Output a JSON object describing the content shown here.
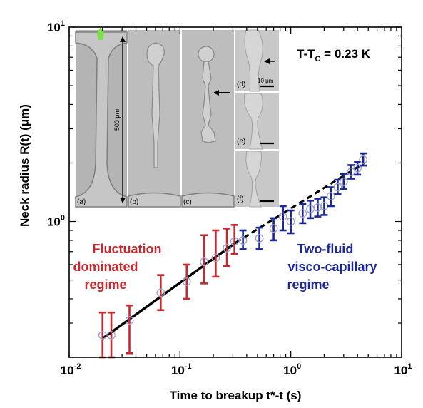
{
  "chart_data": {
    "type": "scatter",
    "xscale": "log",
    "yscale": "log",
    "xlim": [
      0.01,
      10
    ],
    "ylim": [
      0.2,
      10
    ],
    "xlabel": "Time to breakup t*-t (s)",
    "ylabel": "Neck radius R(t) (μm)",
    "x_ticks": [
      "10-2",
      "10-1",
      "100",
      "101"
    ],
    "y_ticks": [
      "100",
      "101"
    ],
    "temperature_label": "T-TC = 0.23 K",
    "grid": false,
    "series": [
      {
        "name": "",
        "color": "#c8282d",
        "x": [
          0.02,
          0.024,
          0.035,
          0.067,
          0.115,
          0.165,
          0.21,
          0.265,
          0.31
        ],
        "y": [
          0.26,
          0.26,
          0.31,
          0.43,
          0.49,
          0.62,
          0.65,
          0.73,
          0.79
        ],
        "yerr_low": [
          0.2,
          0.2,
          0.21,
          0.35,
          0.4,
          0.48,
          0.52,
          0.59,
          0.68
        ],
        "yerr_high": [
          0.34,
          0.34,
          0.37,
          0.53,
          0.6,
          0.85,
          0.9,
          0.92,
          0.96
        ]
      },
      {
        "name": "",
        "color": "#1c2796",
        "x": [
          0.37,
          0.52,
          0.7,
          0.85,
          1.0,
          1.28,
          1.5,
          1.75,
          2.0,
          2.3,
          2.65,
          3.0,
          3.5,
          4.0,
          4.5
        ],
        "y": [
          0.8,
          0.82,
          0.92,
          1.06,
          1.0,
          1.1,
          1.16,
          1.18,
          1.2,
          1.35,
          1.5,
          1.6,
          1.8,
          1.88,
          2.08
        ],
        "yerr_low": [
          0.72,
          0.72,
          0.8,
          0.9,
          0.87,
          0.98,
          1.04,
          1.06,
          1.08,
          1.2,
          1.38,
          1.47,
          1.66,
          1.74,
          1.94
        ],
        "yerr_high": [
          0.9,
          0.93,
          1.04,
          1.2,
          1.14,
          1.23,
          1.28,
          1.31,
          1.33,
          1.5,
          1.64,
          1.75,
          1.95,
          2.02,
          2.24
        ]
      }
    ],
    "fit_lines": [
      {
        "style": "solid",
        "x": [
          0.02,
          0.32
        ],
        "y": [
          0.25,
          0.78
        ]
      },
      {
        "style": "dashed",
        "x": [
          0.32,
          4.6
        ],
        "y": [
          0.78,
          2.0
        ]
      }
    ],
    "annotations": {
      "left_regime": [
        "Fluctuation",
        "dominated",
        "regime"
      ],
      "right_regime": [
        "Two-fluid",
        "visco-capillary",
        "regime"
      ]
    },
    "inset": {
      "panels": [
        "(a)",
        "(b)",
        "(c)",
        "(d)",
        "(e)",
        "(f)"
      ],
      "scale_large": "500 μm",
      "scale_small": "10 μm"
    },
    "colors": {
      "red": "#c8282d",
      "blue": "#1c2796",
      "fit": "#000000",
      "marker": "#9aa0c8"
    }
  }
}
